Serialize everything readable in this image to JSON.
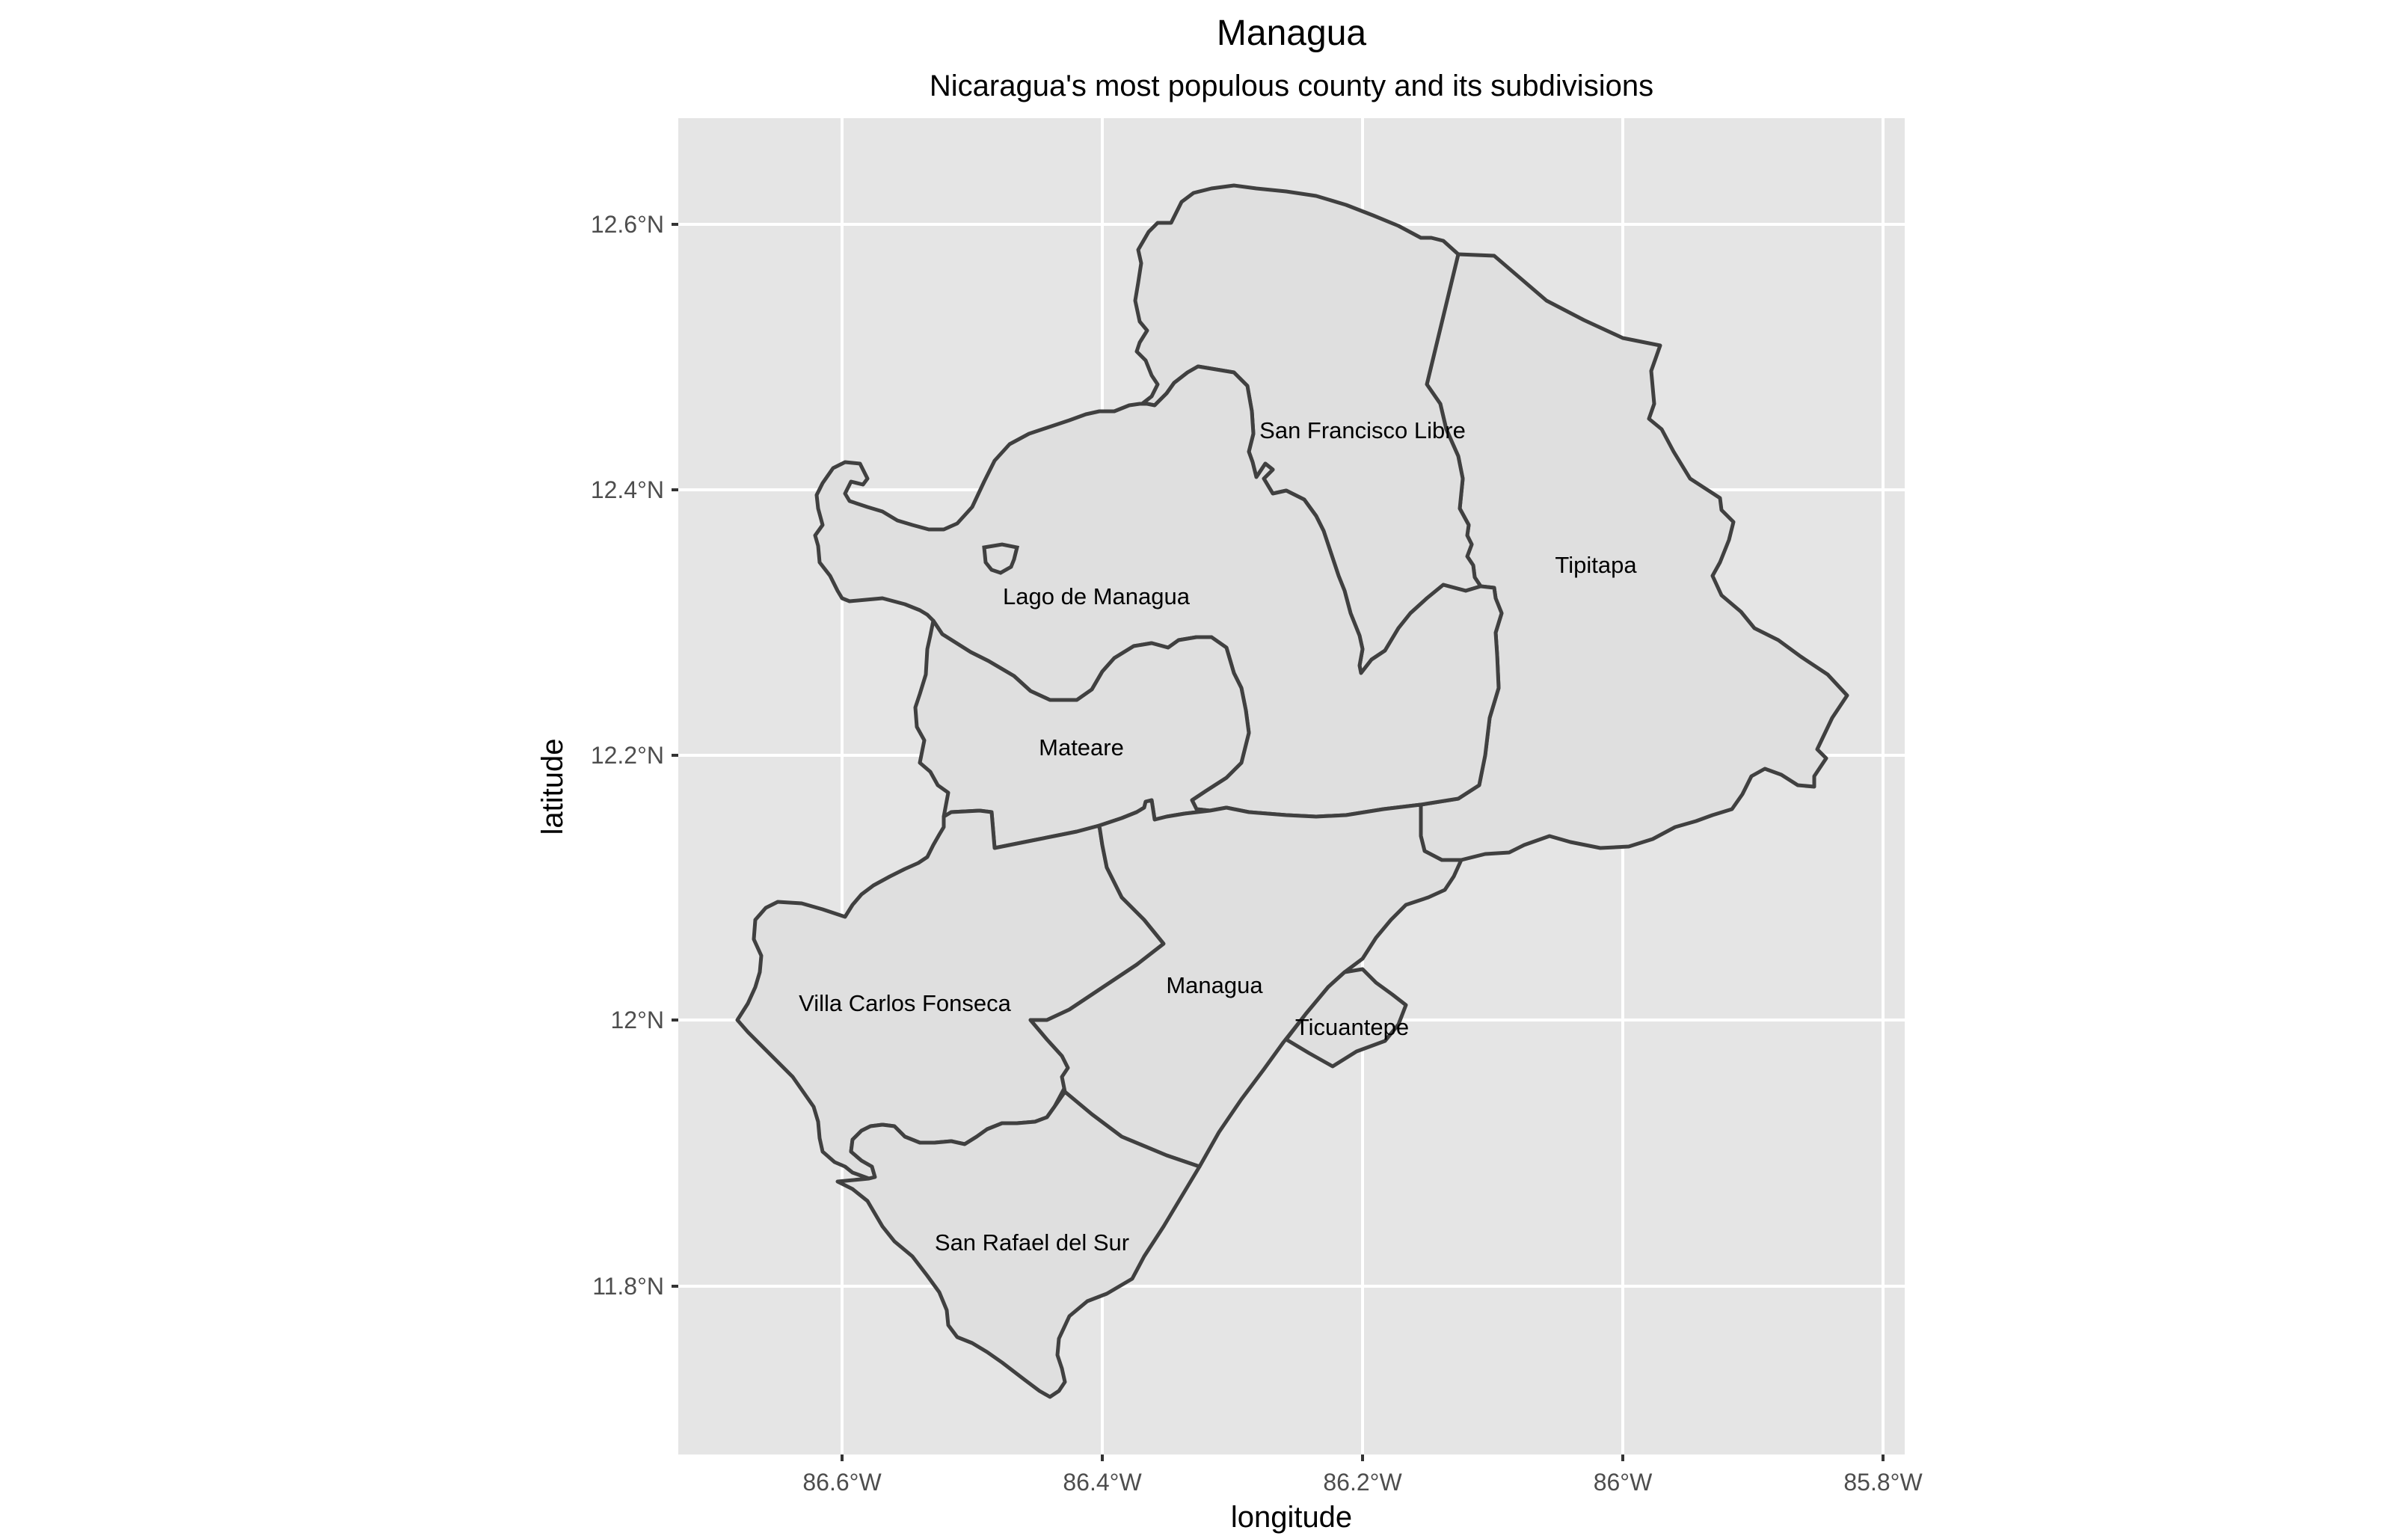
{
  "map": {
    "title": "Managua",
    "subtitle": "Nicaragua's most populous county and its subdivisions",
    "x_axis_title": "longitude",
    "y_axis_title": "latitude",
    "x_ticks": [
      "86.6°W",
      "86.4°W",
      "86.2°W",
      "86°W",
      "85.8°W"
    ],
    "y_ticks": [
      "12.6°N",
      "12.4°N",
      "12.2°N",
      "12°N",
      "11.8°N"
    ],
    "regions": [
      {
        "name": "San Francisco Libre"
      },
      {
        "name": "Tipitapa"
      },
      {
        "name": "Lago de Managua"
      },
      {
        "name": "Mateare"
      },
      {
        "name": "Villa Carlos Fonseca"
      },
      {
        "name": "Managua"
      },
      {
        "name": "Ticuantepe"
      },
      {
        "name": "San Rafael del Sur"
      }
    ],
    "colors": {
      "panel_background": "#e5e5e5",
      "gridline": "#ffffff",
      "region_fill": "#dfdfdf",
      "region_border": "#404040"
    }
  }
}
